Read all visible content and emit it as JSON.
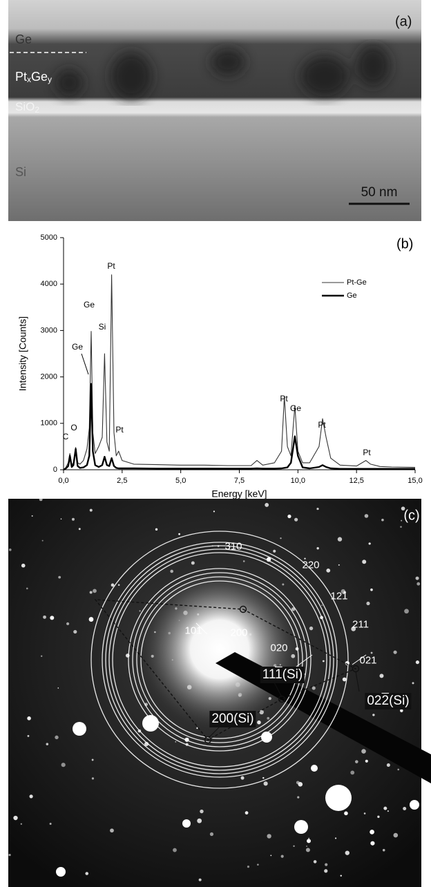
{
  "panel_a": {
    "label": "(a)",
    "ge": "Ge",
    "ptge": [
      "Pt",
      "x",
      "Ge",
      "y"
    ],
    "sio2": [
      "SiO",
      "2"
    ],
    "si": "Si",
    "scale_bar": "50 nm"
  },
  "chart_data": {
    "type": "line",
    "panel_label": "(b)",
    "xlabel": "Energy [keV]",
    "ylabel": "Intensity [Counts]",
    "x": [
      0,
      0.1,
      0.2,
      0.27,
      0.35,
      0.42,
      0.52,
      0.6,
      0.7,
      0.85,
      1.0,
      1.1,
      1.18,
      1.25,
      1.35,
      1.5,
      1.65,
      1.75,
      1.85,
      1.95,
      2.05,
      2.15,
      2.25,
      2.35,
      2.5,
      3.0,
      4.0,
      5.0,
      6.0,
      7.0,
      8.0,
      8.25,
      8.5,
      9.0,
      9.3,
      9.42,
      9.55,
      9.7,
      9.87,
      10.0,
      10.2,
      10.5,
      10.9,
      11.05,
      11.2,
      11.4,
      11.8,
      12.5,
      12.9,
      13.1,
      13.5,
      14.0,
      15.0
    ],
    "series": [
      {
        "name": "Pt-Ge",
        "color": "#333333",
        "values": [
          0,
          50,
          150,
          350,
          100,
          150,
          480,
          150,
          120,
          200,
          450,
          900,
          2980,
          800,
          350,
          500,
          700,
          2500,
          600,
          400,
          4200,
          800,
          300,
          400,
          200,
          120,
          110,
          100,
          100,
          90,
          90,
          200,
          100,
          150,
          400,
          1580,
          500,
          300,
          1380,
          400,
          150,
          150,
          500,
          1100,
          700,
          250,
          100,
          80,
          200,
          120,
          70,
          60,
          50
        ]
      },
      {
        "name": "Ge",
        "color": "#000000",
        "values": [
          0,
          30,
          80,
          300,
          60,
          100,
          450,
          80,
          40,
          50,
          100,
          300,
          1850,
          400,
          100,
          60,
          100,
          280,
          100,
          80,
          250,
          80,
          40,
          30,
          30,
          30,
          25,
          25,
          25,
          25,
          25,
          30,
          25,
          25,
          30,
          40,
          50,
          150,
          720,
          300,
          50,
          30,
          60,
          100,
          60,
          30,
          20,
          20,
          20,
          20,
          20,
          20,
          20
        ]
      }
    ],
    "annotations": [
      "C",
      "O",
      "Ge",
      "Ge",
      "Si",
      "Pt",
      "Pt",
      "Pt",
      "Ge",
      "Pt",
      "Pt"
    ],
    "xlim": [
      0,
      15
    ],
    "ylim": [
      0,
      5000
    ],
    "xticks": [
      {
        "value": 0,
        "label": "0,0"
      },
      {
        "value": 2.5,
        "label": "2,5"
      },
      {
        "value": 5,
        "label": "5,0"
      },
      {
        "value": 7.5,
        "label": "7,5"
      },
      {
        "value": 10,
        "label": "10,0"
      },
      {
        "value": 12.5,
        "label": "12,5"
      },
      {
        "value": 15,
        "label": "15,0"
      }
    ],
    "yticks": [
      0,
      1000,
      2000,
      3000,
      4000,
      5000
    ],
    "legend": "upper right"
  },
  "panel_c": {
    "label": "(c)",
    "rings": [
      "310",
      "220",
      "121",
      "211",
      "101",
      "200",
      "020",
      "111",
      "021"
    ],
    "spots": [
      {
        "text": "11",
        "bar": "1",
        "suffix": "(Si)"
      },
      {
        "text": "200(Si)"
      },
      {
        "text": "02",
        "bar": "2",
        "suffix": "(Si)"
      }
    ]
  }
}
